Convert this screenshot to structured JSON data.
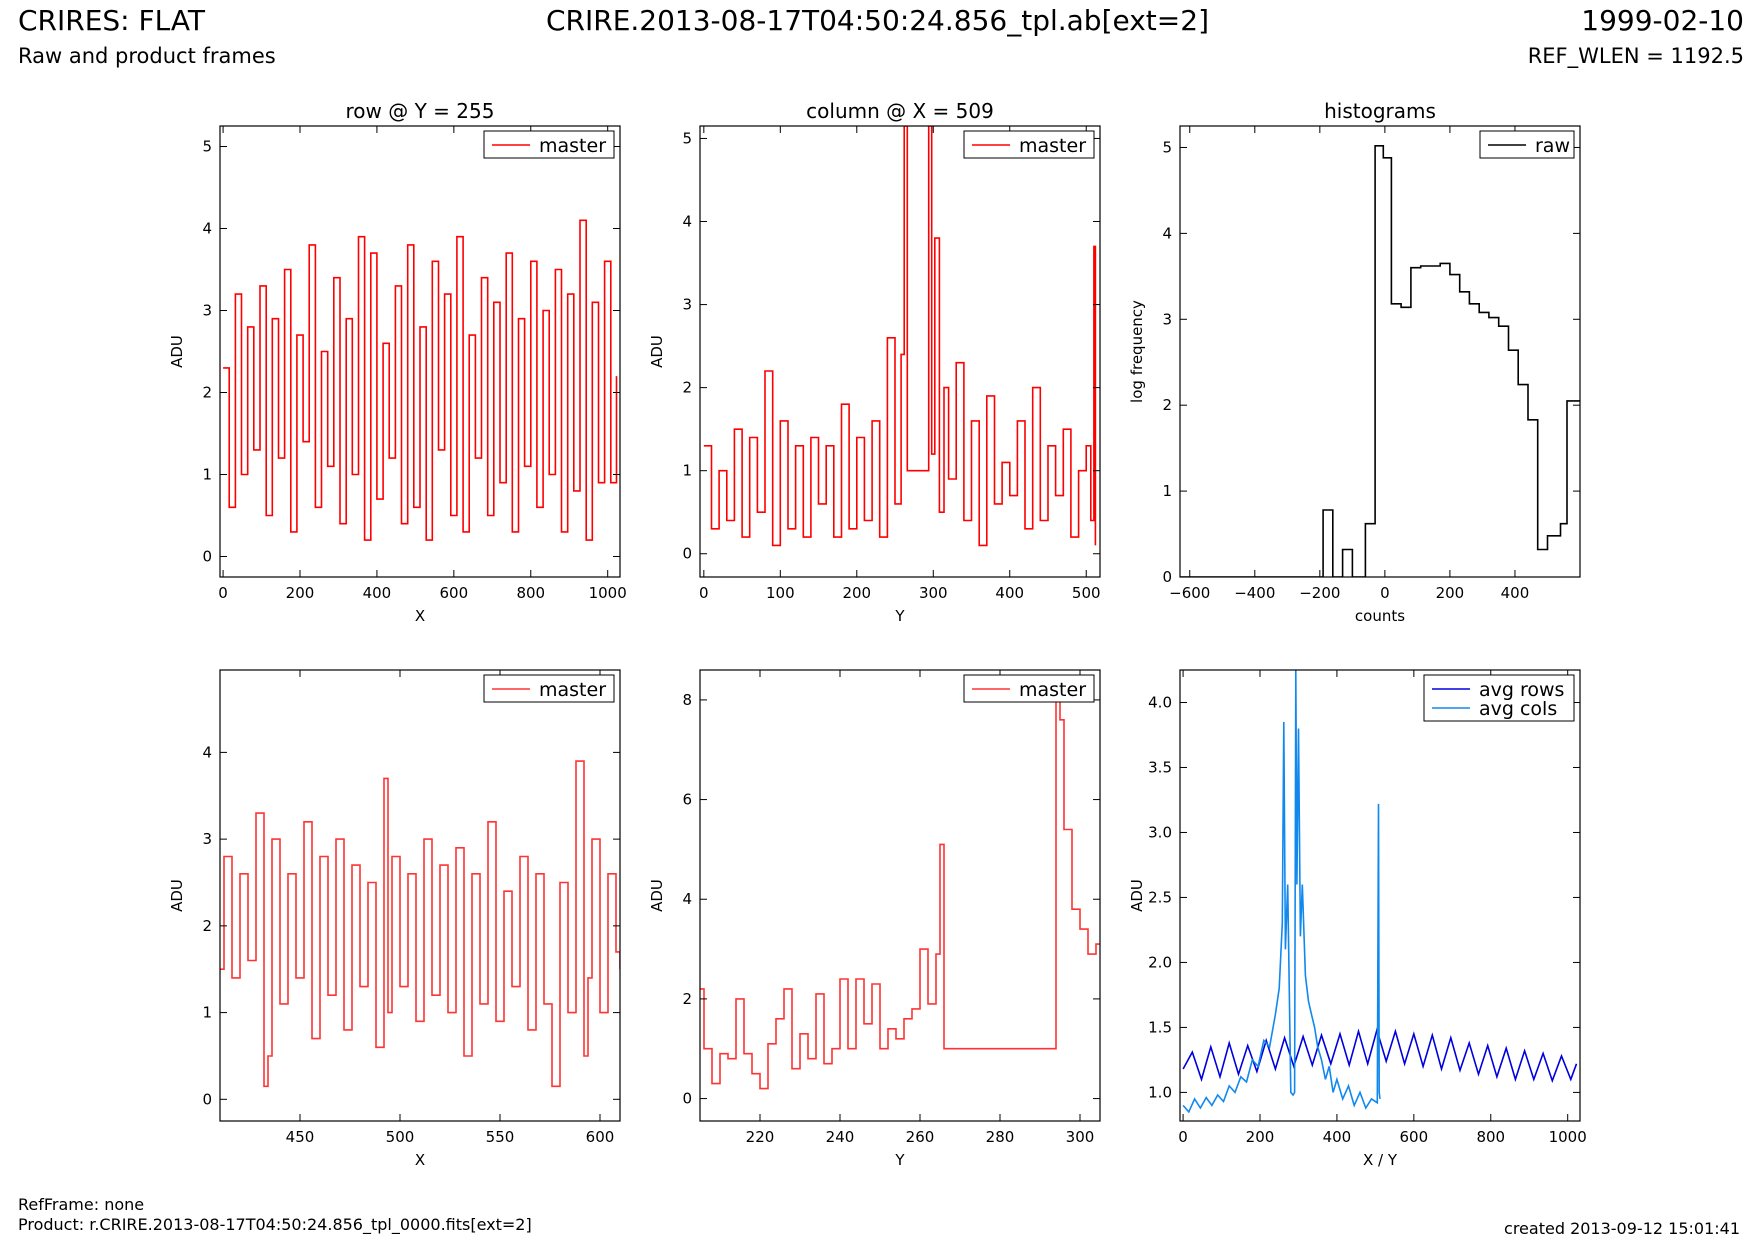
{
  "header": {
    "title_left": "CRIRES: FLAT",
    "subtitle_left": "Raw and product frames",
    "title_center": "CRIRE.2013-08-17T04:50:24.856_tpl.ab[ext=2]",
    "title_right": "1999-02-10",
    "subtitle_right": "REF_WLEN = 1192.5"
  },
  "footer": {
    "refframe": "RefFrame: none",
    "product": "Product: r.CRIRE.2013-08-17T04:50:24.856_tpl_0000.fits[ext=2]",
    "created": "created 2013-09-12 15:01:41"
  },
  "colors": {
    "master": "#ff0000",
    "master_zoom": "#ff3333",
    "raw": "#000000",
    "avg_rows": "#0000dd",
    "avg_cols": "#1188ee"
  },
  "chart_data": [
    {
      "id": "row",
      "type": "line",
      "title": "row @ Y = 255",
      "xlabel": "X",
      "ylabel": "ADU",
      "xlim": [
        -8,
        1032
      ],
      "ylim": [
        -0.25,
        5.25
      ],
      "xticks": [
        0,
        200,
        400,
        600,
        800,
        1000
      ],
      "yticks": [
        0,
        1,
        2,
        3,
        4,
        5
      ],
      "legend": "top-right",
      "grid": false,
      "series": [
        {
          "name": "master",
          "color": "#ff0000",
          "step": true,
          "x": [
            0,
            16,
            32,
            48,
            64,
            80,
            96,
            112,
            128,
            144,
            160,
            176,
            192,
            208,
            224,
            240,
            256,
            272,
            288,
            304,
            320,
            336,
            352,
            368,
            384,
            400,
            416,
            432,
            448,
            464,
            480,
            496,
            512,
            528,
            544,
            560,
            576,
            592,
            608,
            624,
            640,
            656,
            672,
            688,
            704,
            720,
            736,
            752,
            768,
            784,
            800,
            816,
            832,
            848,
            864,
            880,
            896,
            912,
            928,
            944,
            960,
            976,
            992,
            1008,
            1023
          ],
          "y": [
            2.3,
            0.6,
            3.2,
            1.0,
            2.8,
            1.3,
            3.3,
            0.5,
            2.9,
            1.2,
            3.5,
            0.3,
            2.7,
            1.4,
            3.8,
            0.6,
            2.5,
            1.1,
            3.4,
            0.4,
            2.9,
            1.0,
            3.9,
            0.2,
            3.7,
            0.7,
            2.6,
            1.2,
            3.3,
            0.4,
            3.8,
            0.6,
            2.8,
            0.2,
            3.6,
            1.3,
            3.2,
            0.5,
            3.9,
            0.3,
            2.7,
            1.2,
            3.4,
            0.5,
            3.1,
            0.9,
            3.7,
            0.3,
            2.9,
            1.1,
            3.6,
            0.6,
            3.0,
            1.0,
            3.5,
            0.3,
            3.2,
            0.8,
            4.1,
            0.2,
            3.1,
            0.9,
            3.6,
            0.9,
            2.2
          ]
        }
      ]
    },
    {
      "id": "column",
      "type": "line",
      "title": "column @ X = 509",
      "xlabel": "Y",
      "ylabel": "ADU",
      "xlim": [
        -5,
        518
      ],
      "ylim": [
        -0.28,
        5.15
      ],
      "xticks": [
        0,
        100,
        200,
        300,
        400,
        500
      ],
      "yticks": [
        0,
        1,
        2,
        3,
        4,
        5
      ],
      "legend": "top-right",
      "grid": false,
      "series": [
        {
          "name": "master",
          "color": "#ff0000",
          "step": true,
          "x": [
            0,
            10,
            20,
            30,
            40,
            50,
            60,
            70,
            80,
            90,
            100,
            110,
            120,
            130,
            140,
            150,
            160,
            170,
            180,
            190,
            200,
            210,
            220,
            230,
            240,
            250,
            258,
            262,
            266,
            280,
            294,
            298,
            302,
            308,
            314,
            320,
            330,
            340,
            350,
            360,
            370,
            380,
            390,
            400,
            410,
            420,
            430,
            440,
            450,
            460,
            470,
            480,
            490,
            500,
            506,
            510,
            512
          ],
          "y": [
            1.3,
            0.3,
            1.0,
            0.4,
            1.5,
            0.2,
            1.4,
            0.5,
            2.2,
            0.1,
            1.6,
            0.3,
            1.3,
            0.2,
            1.4,
            0.6,
            1.3,
            0.2,
            1.8,
            0.3,
            1.4,
            0.4,
            1.6,
            0.2,
            2.6,
            0.6,
            2.4,
            5.15,
            1.0,
            1.0,
            5.15,
            1.2,
            3.8,
            0.5,
            2.0,
            0.9,
            2.3,
            0.4,
            1.6,
            0.1,
            1.9,
            0.6,
            1.1,
            0.7,
            1.6,
            0.3,
            2.0,
            0.4,
            1.3,
            0.7,
            1.5,
            0.2,
            1.0,
            1.3,
            0.4,
            3.7,
            0.1
          ]
        }
      ]
    },
    {
      "id": "histograms",
      "type": "line",
      "title": "histograms",
      "xlabel": "counts",
      "ylabel": "log frequency",
      "xlim": [
        -630,
        600
      ],
      "ylim": [
        0,
        5.25
      ],
      "xticks": [
        -600,
        -400,
        -200,
        0,
        200,
        400
      ],
      "yticks": [
        0,
        1,
        2,
        3,
        4,
        5
      ],
      "legend": "top-right",
      "grid": false,
      "series": [
        {
          "name": "raw",
          "color": "#000000",
          "step": true,
          "x": [
            -630,
            -220,
            -190,
            -160,
            -130,
            -100,
            -90,
            -60,
            -30,
            -5,
            20,
            50,
            80,
            110,
            140,
            170,
            200,
            230,
            260,
            290,
            320,
            350,
            380,
            410,
            440,
            470,
            500,
            540,
            560,
            600
          ],
          "y": [
            0,
            0,
            0.78,
            0,
            0.32,
            0,
            0,
            0.62,
            5.02,
            4.88,
            3.18,
            3.14,
            3.6,
            3.62,
            3.62,
            3.65,
            3.52,
            3.32,
            3.18,
            3.08,
            3.02,
            2.92,
            2.64,
            2.24,
            1.83,
            0.32,
            0.48,
            0.62,
            2.05,
            2.05
          ]
        }
      ]
    },
    {
      "id": "row-zoom",
      "type": "line",
      "title": "",
      "xlabel": "X",
      "ylabel": "ADU",
      "xlim": [
        410,
        610
      ],
      "ylim": [
        -0.25,
        4.95
      ],
      "xticks": [
        450,
        500,
        550,
        600
      ],
      "yticks": [
        0,
        1,
        2,
        3,
        4
      ],
      "legend": "top-right",
      "grid": false,
      "series": [
        {
          "name": "master",
          "color": "#ff3333",
          "step": true,
          "x": [
            410,
            412,
            416,
            420,
            424,
            428,
            432,
            434,
            436,
            440,
            444,
            448,
            452,
            456,
            460,
            464,
            468,
            472,
            476,
            480,
            484,
            488,
            492,
            494,
            496,
            500,
            504,
            508,
            512,
            516,
            520,
            524,
            528,
            532,
            536,
            540,
            544,
            548,
            552,
            556,
            560,
            564,
            568,
            572,
            576,
            580,
            584,
            588,
            592,
            594,
            596,
            600,
            604,
            608,
            610
          ],
          "y": [
            1.5,
            2.8,
            1.4,
            2.6,
            1.6,
            3.3,
            0.15,
            0.5,
            3.0,
            1.1,
            2.6,
            1.4,
            3.2,
            0.7,
            2.8,
            1.2,
            3.0,
            0.8,
            2.7,
            1.3,
            2.5,
            0.6,
            3.7,
            1.0,
            2.8,
            1.3,
            2.6,
            0.9,
            3.0,
            1.2,
            2.7,
            1.0,
            2.9,
            0.5,
            2.6,
            1.1,
            3.2,
            0.9,
            2.4,
            1.3,
            2.8,
            0.8,
            2.6,
            1.1,
            0.15,
            2.5,
            1.0,
            3.9,
            0.5,
            1.4,
            3.0,
            1.0,
            2.6,
            1.7,
            1.5
          ]
        }
      ]
    },
    {
      "id": "column-zoom",
      "type": "line",
      "title": "",
      "xlabel": "Y",
      "ylabel": "ADU",
      "xlim": [
        205,
        305
      ],
      "ylim": [
        -0.45,
        8.6
      ],
      "xticks": [
        220,
        240,
        260,
        280,
        300
      ],
      "yticks": [
        0,
        2,
        4,
        6,
        8
      ],
      "legend": "top-right",
      "grid": false,
      "series": [
        {
          "name": "master",
          "color": "#ff3333",
          "step": true,
          "x": [
            205,
            206,
            208,
            210,
            212,
            214,
            216,
            218,
            220,
            222,
            224,
            226,
            228,
            230,
            232,
            234,
            236,
            238,
            240,
            242,
            244,
            246,
            248,
            250,
            252,
            254,
            256,
            258,
            260,
            262,
            264,
            265,
            266,
            293,
            294,
            295,
            296,
            298,
            300,
            302,
            304,
            305
          ],
          "y": [
            2.2,
            1.0,
            0.3,
            0.9,
            0.8,
            2.0,
            0.9,
            0.5,
            0.2,
            1.1,
            1.6,
            2.2,
            0.6,
            1.3,
            0.8,
            2.1,
            0.7,
            1.0,
            2.4,
            1.0,
            2.4,
            1.5,
            2.3,
            1.0,
            1.4,
            1.2,
            1.6,
            1.8,
            3.0,
            1.9,
            2.9,
            5.1,
            1.0,
            1.0,
            8.2,
            7.6,
            5.4,
            3.8,
            3.4,
            2.9,
            3.1,
            3.1
          ]
        }
      ]
    },
    {
      "id": "averages",
      "type": "line",
      "title": "",
      "xlabel": "X / Y",
      "ylabel": "ADU",
      "xlim": [
        -8,
        1032
      ],
      "ylim": [
        0.78,
        4.25
      ],
      "xticks": [
        0,
        200,
        400,
        600,
        800,
        1000
      ],
      "yticks": [
        1.0,
        1.5,
        2.0,
        2.5,
        3.0,
        3.5,
        4.0
      ],
      "legend": "top-right",
      "grid": false,
      "series": [
        {
          "name": "avg rows",
          "color": "#0000dd",
          "step": false,
          "x": [
            0,
            24,
            48,
            72,
            96,
            120,
            144,
            168,
            192,
            216,
            240,
            264,
            288,
            312,
            336,
            360,
            384,
            408,
            432,
            456,
            480,
            504,
            528,
            552,
            576,
            600,
            624,
            648,
            672,
            696,
            720,
            744,
            768,
            792,
            816,
            840,
            864,
            888,
            912,
            936,
            960,
            984,
            1008,
            1023
          ],
          "y": [
            1.18,
            1.31,
            1.1,
            1.35,
            1.12,
            1.38,
            1.14,
            1.36,
            1.16,
            1.4,
            1.18,
            1.42,
            1.2,
            1.43,
            1.21,
            1.44,
            1.22,
            1.45,
            1.21,
            1.47,
            1.22,
            1.48,
            1.24,
            1.47,
            1.22,
            1.45,
            1.2,
            1.44,
            1.18,
            1.42,
            1.17,
            1.38,
            1.14,
            1.36,
            1.12,
            1.34,
            1.1,
            1.32,
            1.1,
            1.3,
            1.09,
            1.28,
            1.1,
            1.22
          ]
        },
        {
          "name": "avg cols",
          "color": "#1188ee",
          "step": false,
          "x": [
            0,
            15,
            30,
            45,
            60,
            75,
            90,
            105,
            120,
            135,
            150,
            165,
            180,
            195,
            210,
            225,
            240,
            250,
            258,
            262,
            266,
            272,
            280,
            286,
            290,
            293,
            296,
            300,
            305,
            310,
            318,
            326,
            334,
            342,
            350,
            360,
            370,
            380,
            390,
            400,
            415,
            430,
            445,
            460,
            475,
            490,
            505,
            508,
            510,
            512
          ],
          "y": [
            0.9,
            0.85,
            0.95,
            0.88,
            0.96,
            0.9,
            0.98,
            0.93,
            1.05,
            1.0,
            1.12,
            1.08,
            1.25,
            1.2,
            1.4,
            1.35,
            1.6,
            1.8,
            2.3,
            3.85,
            2.1,
            2.6,
            1.0,
            0.98,
            1.0,
            4.25,
            2.6,
            3.8,
            2.2,
            2.6,
            1.9,
            1.7,
            1.6,
            1.5,
            1.35,
            1.25,
            1.1,
            1.2,
            1.0,
            1.1,
            0.95,
            1.05,
            0.9,
            1.0,
            0.88,
            0.95,
            0.92,
            3.22,
            1.0,
            0.95
          ]
        }
      ]
    }
  ]
}
